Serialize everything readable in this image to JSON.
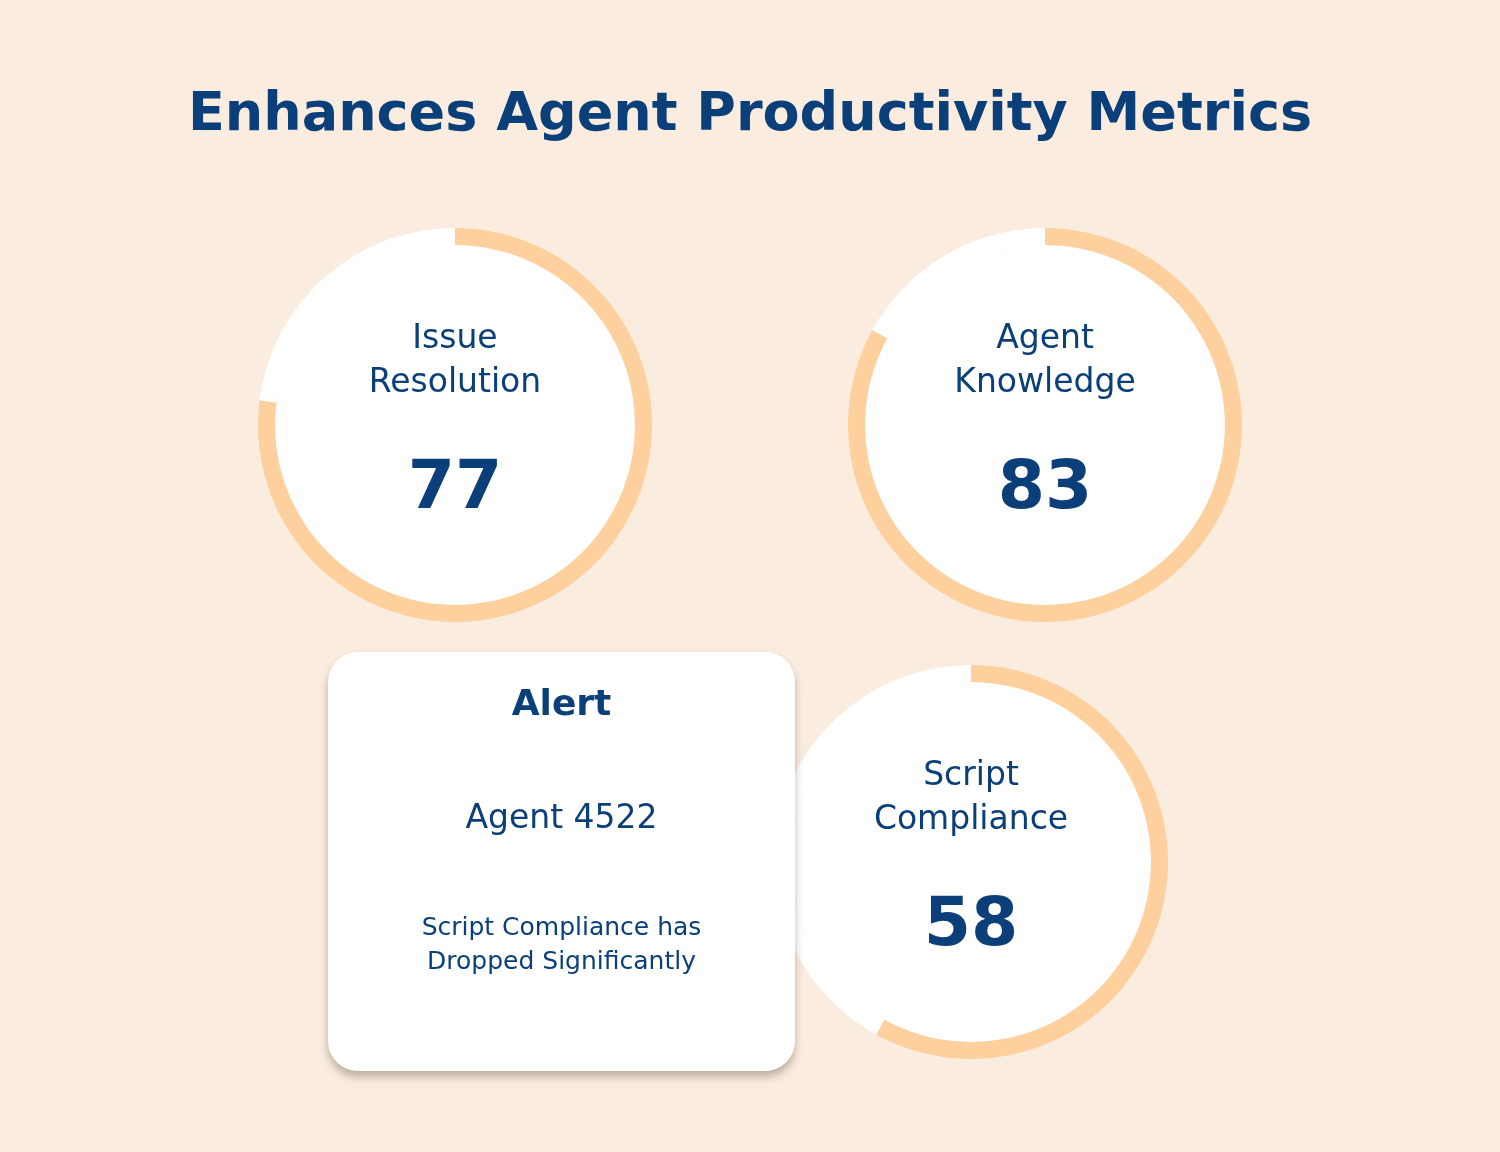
{
  "chart_data": [
    {
      "type": "other",
      "title": "Enhances Agent Productivity Metrics"
    },
    {
      "type": "donut",
      "title": "Issue Resolution",
      "annotations": [
        "77"
      ],
      "categories": [
        null,
        null
      ],
      "values": [
        77,
        23
      ],
      "colors": [
        "#fed09e",
        "#ffffff"
      ],
      "legend": false
    },
    {
      "type": "donut",
      "title": "Agent Knowledge",
      "annotations": [
        "83"
      ],
      "categories": [
        null,
        null
      ],
      "values": [
        83,
        17
      ],
      "colors": [
        "#fed09e",
        "#ffffff"
      ],
      "legend": false
    },
    {
      "type": "other",
      "title": "Alert",
      "annotations": [
        "Agent 4522",
        "Script Compliance has Dropped Significantly"
      ]
    },
    {
      "type": "donut",
      "title": "Script Compliance",
      "annotations": [
        "58"
      ],
      "categories": [
        null,
        null
      ],
      "values": [
        58,
        42
      ],
      "colors": [
        "#fed09e",
        "#ffffff"
      ],
      "legend": false
    }
  ]
}
